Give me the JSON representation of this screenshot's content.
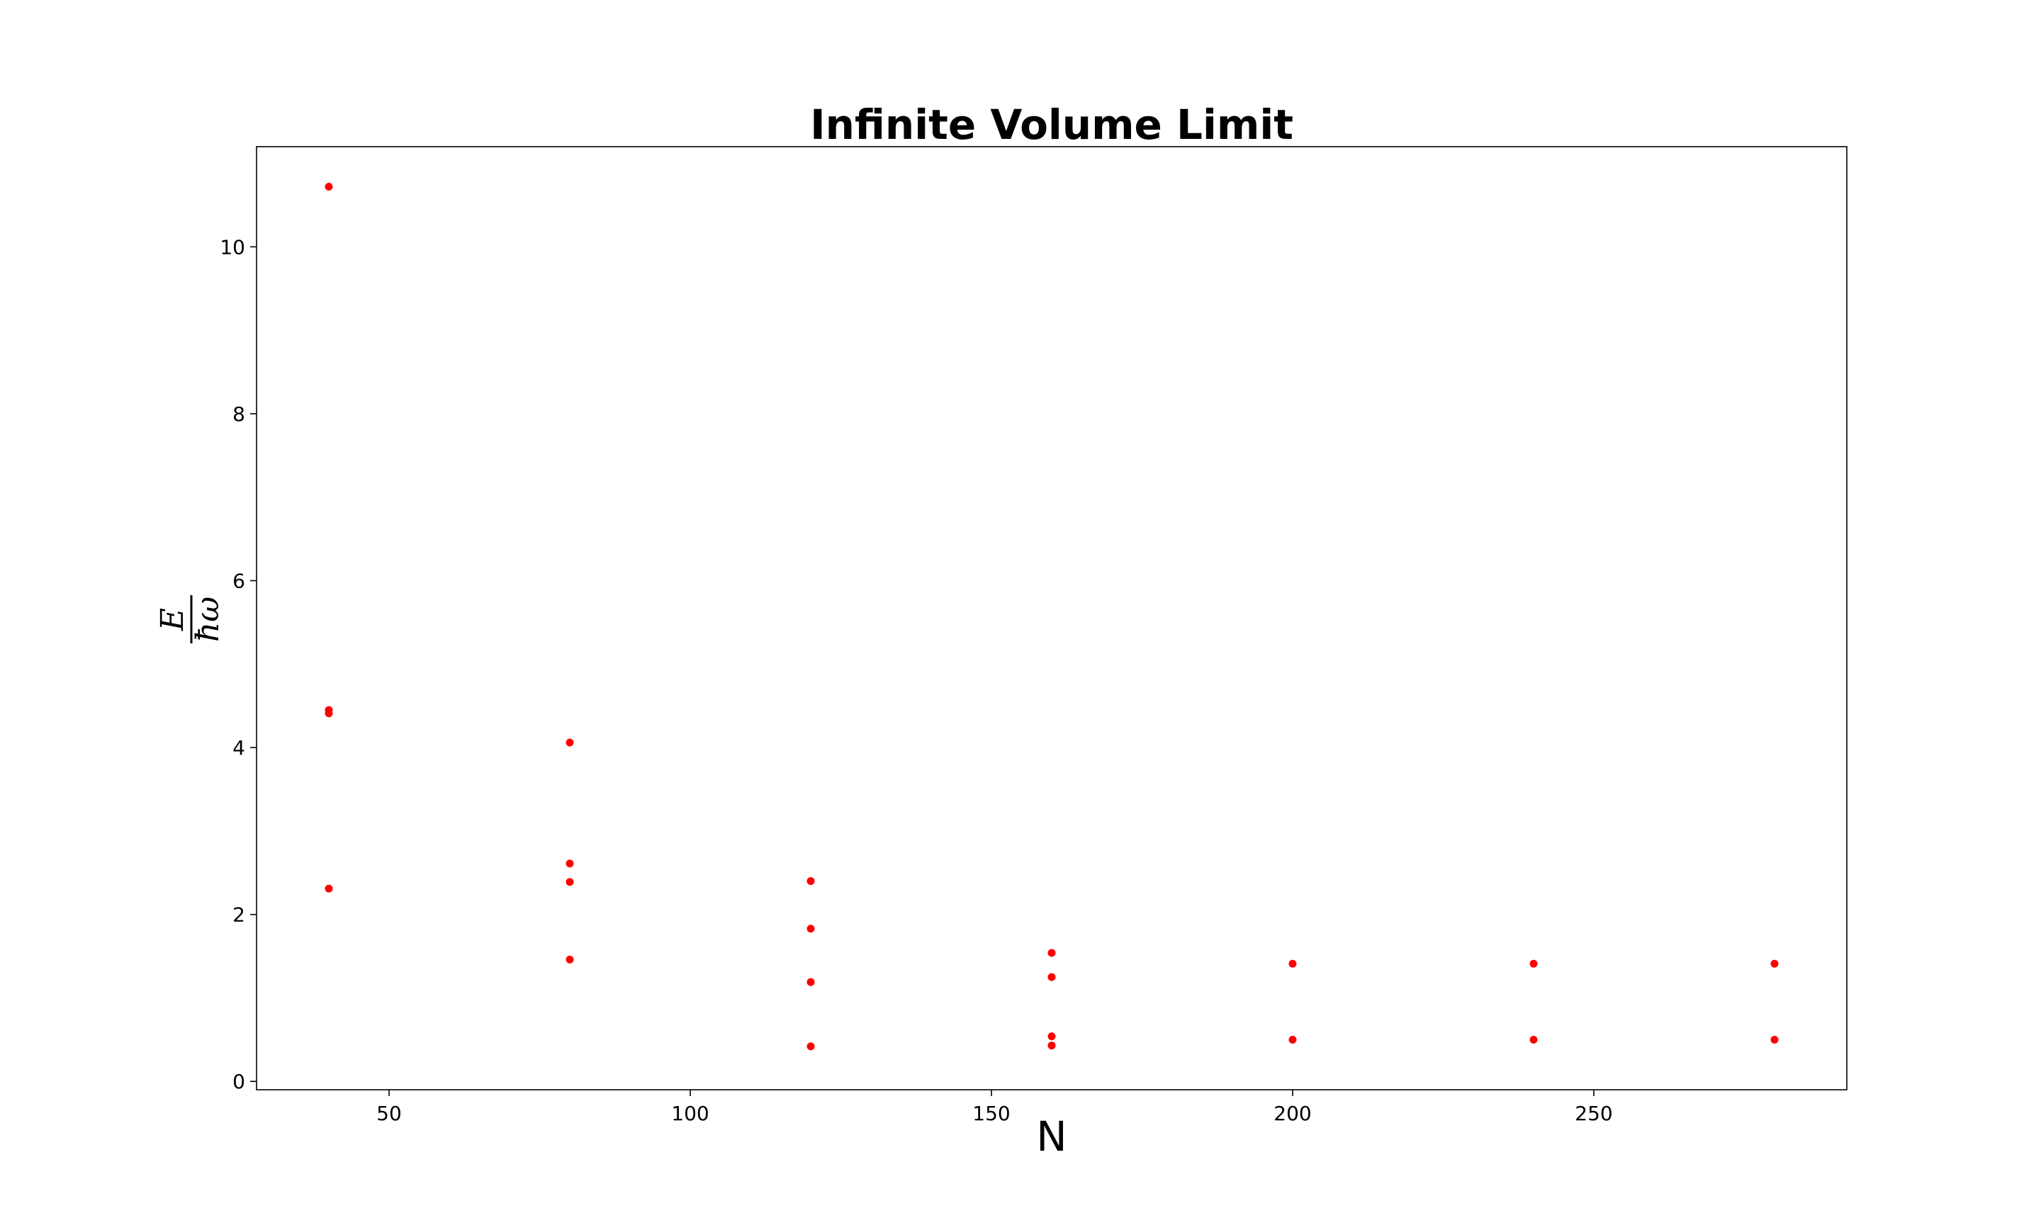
{
  "chart_data": {
    "type": "scatter",
    "title": "Infinite Volume Limit",
    "xlabel": "N",
    "ylabel": {
      "numerator": "E",
      "denominator": "ħω"
    },
    "xlim": [
      28,
      292
    ],
    "ylim": [
      -0.1,
      11.2
    ],
    "xticks": [
      50,
      100,
      150,
      200,
      250
    ],
    "yticks": [
      0,
      2,
      4,
      6,
      8,
      10
    ],
    "grid": false,
    "marker_color": "#ff0000",
    "series": [
      {
        "x": [
          40,
          40,
          40,
          40,
          80,
          80,
          80,
          80,
          120,
          120,
          120,
          120,
          160,
          160,
          160,
          160,
          200,
          200,
          240,
          240,
          280,
          280
        ],
        "y": [
          10.72,
          4.45,
          4.41,
          2.31,
          4.06,
          2.61,
          2.39,
          1.46,
          2.4,
          1.83,
          1.19,
          0.42,
          1.54,
          1.25,
          0.54,
          0.43,
          1.41,
          0.5,
          1.41,
          0.5,
          1.41,
          0.5
        ]
      }
    ]
  }
}
